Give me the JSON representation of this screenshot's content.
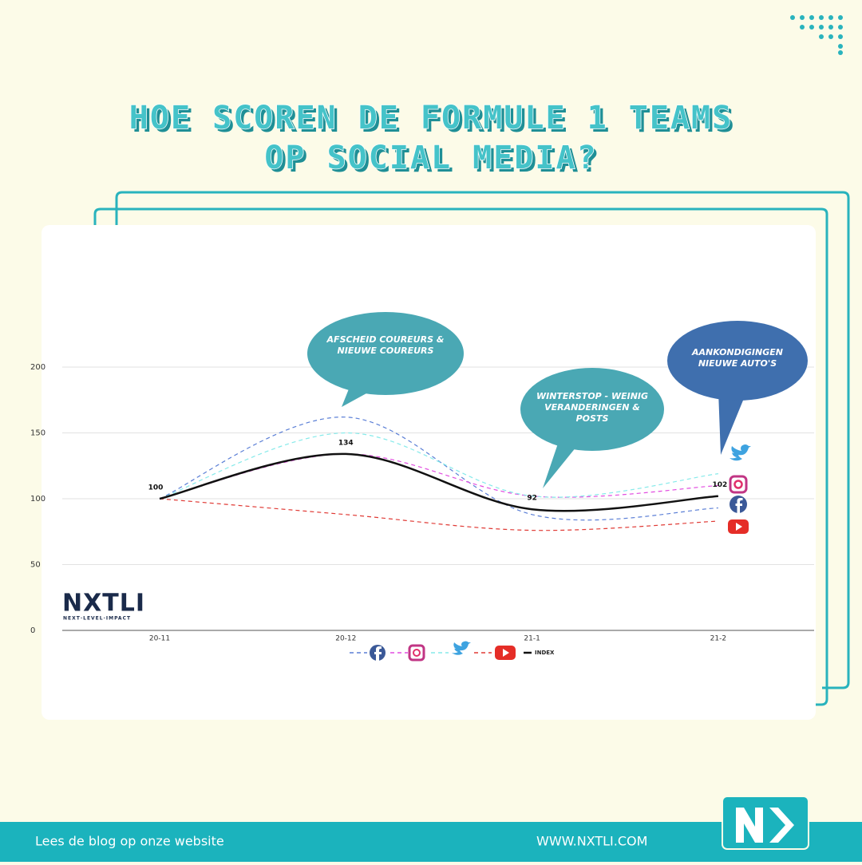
{
  "header": {
    "title_lines": [
      "HOE SCOREN DE FORMULE 1 TEAMS",
      "OP SOCIAL MEDIA?"
    ]
  },
  "chart_data": {
    "type": "line",
    "categories": [
      "20-11",
      "20-12",
      "21-1",
      "21-2"
    ],
    "ylim": [
      0,
      200
    ],
    "yticks": [
      0,
      50,
      100,
      150,
      200
    ],
    "grid": true,
    "series": [
      {
        "color": "#5b7fd6",
        "dashed": true,
        "values": [
          100,
          162,
          88,
          93
        ]
      },
      {
        "color": "#e24ce0",
        "dashed": true,
        "values": [
          100,
          134,
          102,
          110
        ]
      },
      {
        "color": "#86eaea",
        "dashed": true,
        "values": [
          100,
          150,
          102,
          119
        ]
      },
      {
        "color": "#e03a35",
        "dashed": true,
        "values": [
          100,
          88,
          76,
          83
        ]
      },
      {
        "name": "INDEX",
        "color": "#111111",
        "dashed": false,
        "values": [
          100,
          134,
          92,
          102
        ]
      }
    ],
    "value_labels_series": 4,
    "annotations": [
      {
        "lines": [
          "AFSCHEID COUREURS &",
          "NIEUWE COUREURS"
        ],
        "color": "#4aa8b4"
      },
      {
        "lines": [
          "WINTERSTOP - WEINIG",
          "VERANDERINGEN &",
          "POSTS"
        ],
        "color": "#4aa8b4"
      },
      {
        "lines": [
          "AANKONDIGINGEN",
          "NIEUWE AUTO'S"
        ],
        "color": "#3f6fae"
      }
    ],
    "logo": {
      "name": "NXTLI",
      "tagline": "NEXT·LEVEL·IMPACT"
    }
  },
  "footer": {
    "left": "Lees de blog op onze website",
    "right": "WWW.NXTLI.COM"
  }
}
